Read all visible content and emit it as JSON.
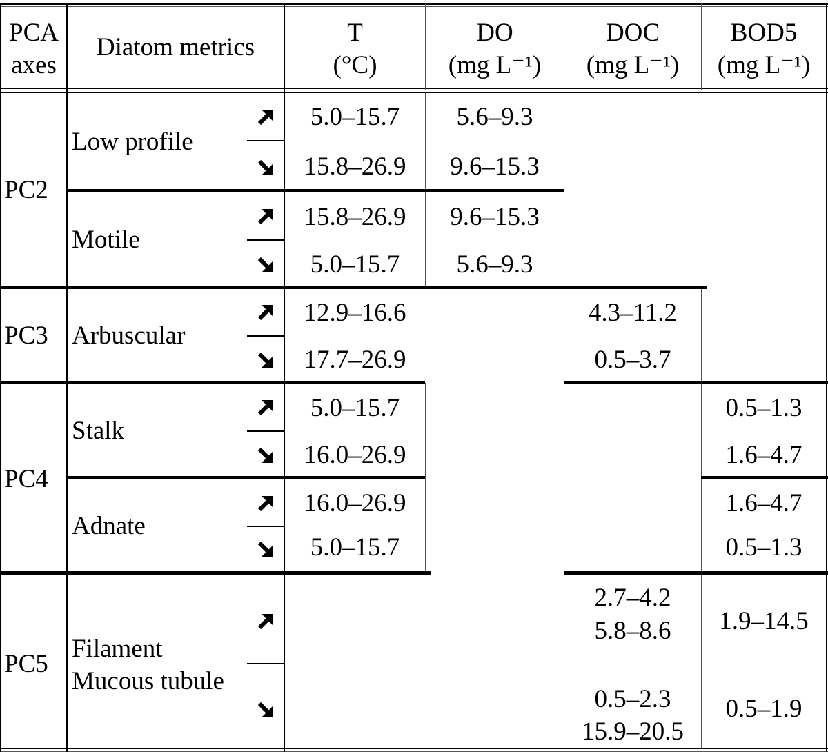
{
  "header": {
    "pca": "PCA",
    "axes": "axes",
    "metrics": "Diatom metrics",
    "t": "T",
    "t_unit": "(°C)",
    "do": "DO",
    "do_unit": "(mg L⁻¹)",
    "doc": "DOC",
    "doc_unit": "(mg L⁻¹)",
    "bod": "BOD5",
    "bod_unit": "(mg L⁻¹)"
  },
  "axes": {
    "pc2": "PC2",
    "pc3": "PC3",
    "pc4": "PC4",
    "pc5": "PC5"
  },
  "metrics": {
    "low_profile": "Low profile",
    "motile": "Motile",
    "arbuscular": "Arbuscular",
    "stalk": "Stalk",
    "adnate": "Adnate",
    "filament": "Filament",
    "mucous": "Mucous tubule"
  },
  "icons": {
    "up": "arrow-up-right-icon",
    "down": "arrow-down-right-icon"
  },
  "rows": {
    "low_profile": {
      "up": {
        "t": "5.0–15.7",
        "do": "5.6–9.3"
      },
      "down": {
        "t": "15.8–26.9",
        "do": "9.6–15.3"
      }
    },
    "motile": {
      "up": {
        "t": "15.8–26.9",
        "do": "9.6–15.3"
      },
      "down": {
        "t": "5.0–15.7",
        "do": "5.6–9.3"
      }
    },
    "arbuscular": {
      "up": {
        "t": "12.9–16.6",
        "doc": "4.3–11.2"
      },
      "down": {
        "t": "17.7–26.9",
        "doc": "0.5–3.7"
      }
    },
    "stalk": {
      "up": {
        "t": "5.0–15.7",
        "bod": "0.5–1.3"
      },
      "down": {
        "t": "16.0–26.9",
        "bod": "1.6–4.7"
      }
    },
    "adnate": {
      "up": {
        "t": "16.0–26.9",
        "bod": "1.6–4.7"
      },
      "down": {
        "t": "5.0–15.7",
        "bod": "0.5–1.3"
      }
    },
    "pc5": {
      "up": {
        "doc1": "2.7–4.2",
        "doc2": "5.8–8.6",
        "bod": "1.9–14.5"
      },
      "down": {
        "doc1": "0.5–2.3",
        "doc2": "15.9–20.5",
        "bod": "0.5–1.9"
      }
    }
  }
}
